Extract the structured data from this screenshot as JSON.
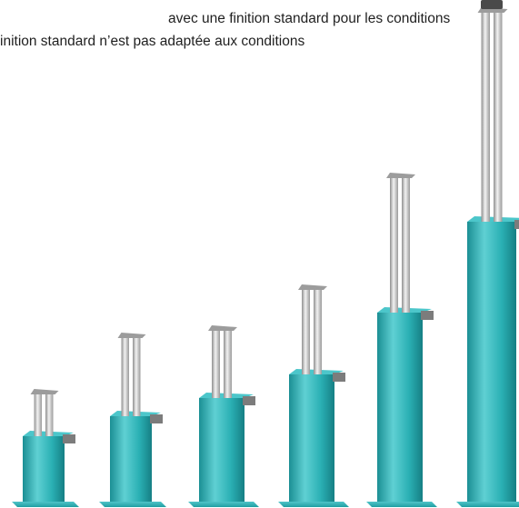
{
  "text": {
    "line1": "avec une finition standard pour les conditions",
    "line2": "inition standard n’est pas adaptée aux conditions"
  },
  "colors": {
    "background": "#ffffff",
    "text": "#1f1f1f",
    "column_teal": "#2ab0b4",
    "column_teal_dark": "#1b8f94",
    "column_teal_light": "#5fd0d3",
    "rod_silver": "#c9c9c9",
    "bracket_gray": "#7c7c7c",
    "top_cap_dark": "#4a4a4a"
  },
  "image": {
    "subject": "telescopic-column-lifts",
    "column_count": 6
  }
}
